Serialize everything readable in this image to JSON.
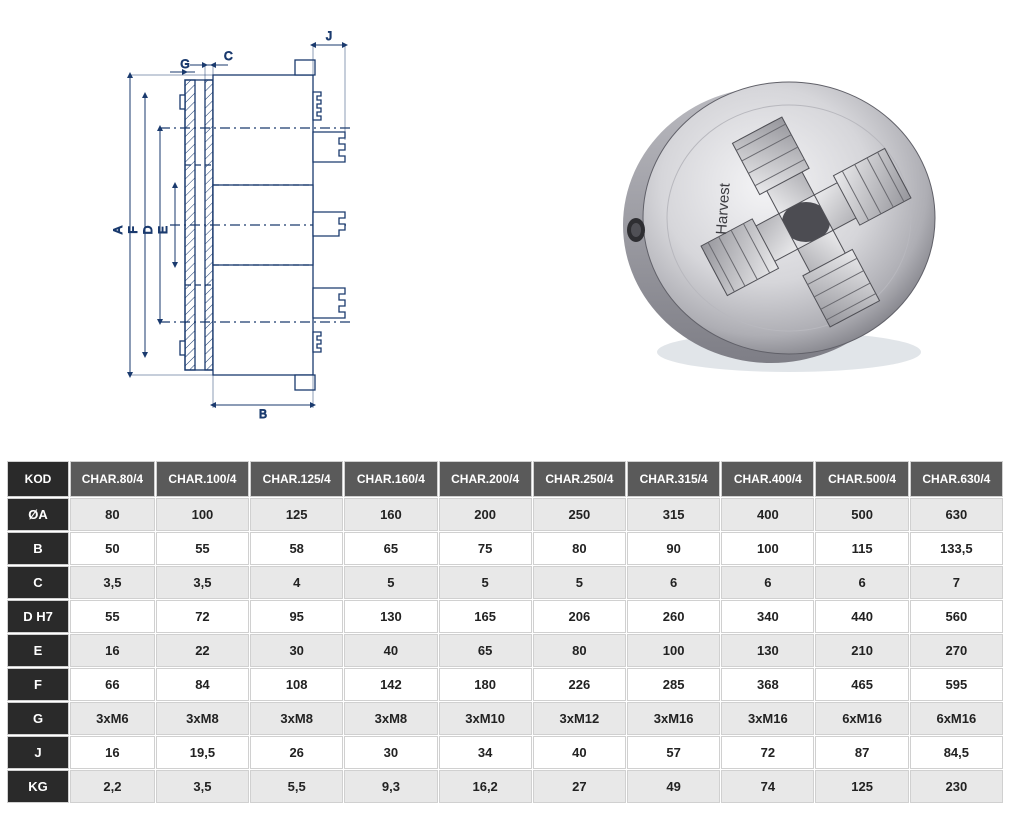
{
  "diagram": {
    "labels": {
      "A": "A",
      "B": "B",
      "C": "C",
      "D": "D",
      "E": "E",
      "F": "F",
      "G": "G",
      "J": "J"
    },
    "stroke": "#1a3a6e",
    "fill_light": "#d8e4f2",
    "fill_mid": "#b8cce4",
    "hatch": "#1a3a6e"
  },
  "photo": {
    "brand": "Harvest",
    "body_light": "#e8e8ea",
    "body_mid": "#c8c8cc",
    "body_dark": "#888890",
    "jaw_light": "#d8d8dc",
    "jaw_dark": "#58585e",
    "shadow": "#98a0a8"
  },
  "table": {
    "kod_label": "KOD",
    "columns": [
      "CHAR.80/4",
      "CHAR.100/4",
      "CHAR.125/4",
      "CHAR.160/4",
      "CHAR.200/4",
      "CHAR.250/4",
      "CHAR.315/4",
      "CHAR.400/4",
      "CHAR.500/4",
      "CHAR.630/4"
    ],
    "row_labels": [
      "ØA",
      "B",
      "C",
      "D H7",
      "E",
      "F",
      "G",
      "J",
      "KG"
    ],
    "rows": [
      [
        "80",
        "100",
        "125",
        "160",
        "200",
        "250",
        "315",
        "400",
        "500",
        "630"
      ],
      [
        "50",
        "55",
        "58",
        "65",
        "75",
        "80",
        "90",
        "100",
        "115",
        "133,5"
      ],
      [
        "3,5",
        "3,5",
        "4",
        "5",
        "5",
        "5",
        "6",
        "6",
        "6",
        "7"
      ],
      [
        "55",
        "72",
        "95",
        "130",
        "165",
        "206",
        "260",
        "340",
        "440",
        "560"
      ],
      [
        "16",
        "22",
        "30",
        "40",
        "65",
        "80",
        "100",
        "130",
        "210",
        "270"
      ],
      [
        "66",
        "84",
        "108",
        "142",
        "180",
        "226",
        "285",
        "368",
        "465",
        "595"
      ],
      [
        "3xM6",
        "3xM8",
        "3xM8",
        "3xM8",
        "3xM10",
        "3xM12",
        "3xM16",
        "3xM16",
        "6xM16",
        "6xM16"
      ],
      [
        "16",
        "19,5",
        "26",
        "30",
        "34",
        "40",
        "57",
        "72",
        "87",
        "84,5"
      ],
      [
        "2,2",
        "3,5",
        "5,5",
        "9,3",
        "16,2",
        "27",
        "49",
        "74",
        "125",
        "230"
      ]
    ],
    "header_bg": "#5a5a5a",
    "rowhead_bg": "#2a2a2a",
    "alt_bg": "#e8e8e8",
    "cell_bg": "#ffffff",
    "border_color": "#d0d0d0",
    "text_color": "#222222",
    "head_text_color": "#ffffff"
  }
}
